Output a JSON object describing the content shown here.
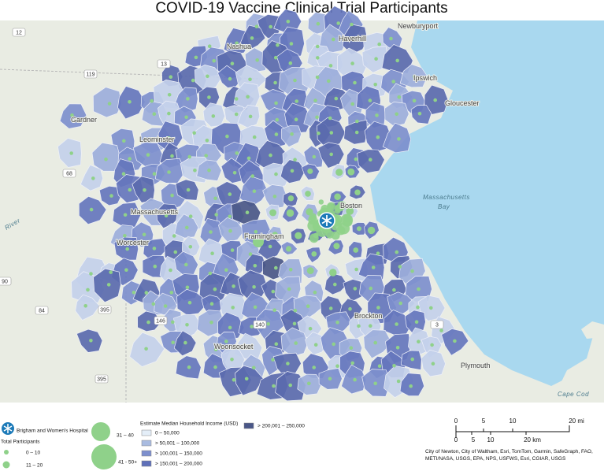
{
  "header": {
    "title": "COVID-19 Vaccine Clinical Trial Participants"
  },
  "map": {
    "places": [
      "Haverhill",
      "Newburyport",
      "Nashua",
      "Ipswich",
      "Gloucester",
      "Gardner",
      "Leominster",
      "Massachusetts",
      "Worcester",
      "Framingham",
      "Boston",
      "Brockton",
      "Woonsocket",
      "Plymouth"
    ],
    "water": [
      "Massachusetts",
      "Bay",
      "Cape Cod",
      "River"
    ],
    "routes": [
      "12",
      "119",
      "13",
      "68",
      "90",
      "84",
      "395",
      "140",
      "146",
      "3",
      "395"
    ]
  },
  "legend": {
    "hospital": "Brigham and Women's Hospital",
    "participants_title": "Total Participants",
    "participants": [
      "0 – 10",
      "11 – 20",
      "31 – 40",
      "41 - 50+"
    ],
    "income_title": "Estimate Median Household Income (USD)",
    "income": [
      "0 – 50,000",
      "> 50,001 – 100,000",
      "> 100,001 – 150,000",
      "> 150,001 – 200,000",
      "> 200,001 – 250,000"
    ]
  },
  "scale": {
    "mi": [
      "0",
      "5",
      "10",
      "20 mi"
    ],
    "km": [
      "0",
      "5",
      "10",
      "20 km"
    ]
  },
  "attribution": [
    "City of Newton, City of Waltham, Esri, TomTom, Garmin, SafeGraph, FAO,",
    "METI/NASA, USGS, EPA, NPS, USFWS, Esri, CGIAR, USGS"
  ]
}
